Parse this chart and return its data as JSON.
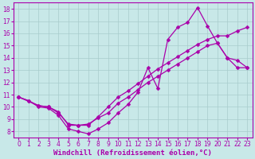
{
  "bg_color": "#c8e8e8",
  "grid_color": "#a8cccc",
  "line_color": "#aa00aa",
  "marker": "D",
  "markersize": 2.5,
  "linewidth": 0.9,
  "xlabel": "Windchill (Refroidissement éolien,°C)",
  "xlabel_fontsize": 6.5,
  "tick_fontsize": 5.5,
  "xlim": [
    -0.5,
    23.5
  ],
  "ylim": [
    7.5,
    18.5
  ],
  "xticks": [
    0,
    1,
    2,
    3,
    4,
    5,
    6,
    7,
    8,
    9,
    10,
    11,
    12,
    13,
    14,
    15,
    16,
    17,
    18,
    19,
    20,
    21,
    22,
    23
  ],
  "yticks": [
    8,
    9,
    10,
    11,
    12,
    13,
    14,
    15,
    16,
    17,
    18
  ],
  "line1_x": [
    0,
    1,
    2,
    3,
    4,
    5,
    6,
    7,
    8,
    9,
    10,
    11,
    12,
    13,
    14,
    15,
    16,
    17,
    18,
    19,
    20,
    21,
    22,
    23
  ],
  "line1_y": [
    10.8,
    10.5,
    10.0,
    9.9,
    9.3,
    8.2,
    8.0,
    7.8,
    8.2,
    8.7,
    9.5,
    10.2,
    11.2,
    13.2,
    11.5,
    15.5,
    16.5,
    16.9,
    18.1,
    16.6,
    15.2,
    14.0,
    13.2,
    13.2
  ],
  "line2_x": [
    0,
    2,
    3,
    4,
    5,
    6,
    7,
    8,
    9,
    10,
    11,
    12,
    13,
    14,
    15,
    16,
    17,
    18,
    19,
    20,
    21,
    22,
    23
  ],
  "line2_y": [
    10.8,
    10.1,
    10.0,
    9.6,
    8.5,
    8.5,
    8.6,
    9.1,
    9.5,
    10.3,
    10.8,
    11.4,
    12.0,
    12.5,
    13.0,
    13.5,
    14.0,
    14.5,
    15.0,
    15.2,
    14.0,
    13.8,
    13.2
  ],
  "line3_x": [
    0,
    1,
    2,
    3,
    4,
    5,
    6,
    7,
    8,
    9,
    10,
    11,
    12,
    13,
    14,
    15,
    16,
    17,
    18,
    19,
    20,
    21,
    22,
    23
  ],
  "line3_y": [
    10.8,
    10.5,
    10.1,
    10.0,
    9.5,
    8.6,
    8.5,
    8.5,
    9.2,
    10.0,
    10.8,
    11.3,
    11.9,
    12.5,
    13.1,
    13.6,
    14.1,
    14.6,
    15.1,
    15.5,
    15.8,
    15.8,
    16.2,
    16.5
  ]
}
